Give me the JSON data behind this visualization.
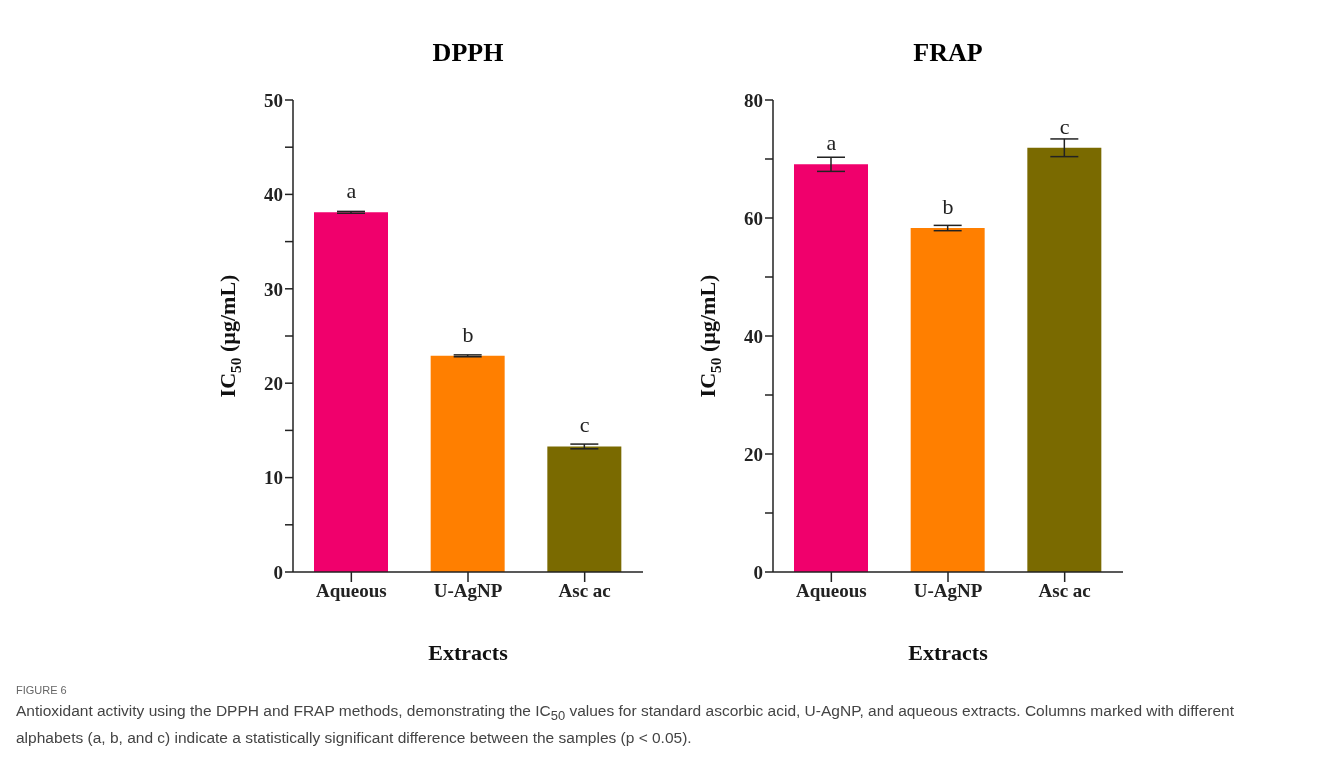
{
  "chart_data": [
    {
      "type": "bar",
      "title": "DPPH",
      "xlabel": "Extracts",
      "ylabel": "IC$_{50}$ (µg/mL)",
      "categories": [
        "Aqueous",
        "U-AgNP",
        "Asc ac"
      ],
      "values": [
        38.1,
        22.9,
        13.3
      ],
      "errors": [
        0.1,
        0.1,
        0.25
      ],
      "colors": [
        "#f0006c",
        "#ff7f00",
        "#7a6a00"
      ],
      "ylim": [
        0,
        50
      ],
      "yticks": [
        0,
        {
          "value": 5,
          "label": null
        },
        10,
        {
          "value": 15,
          "label": null
        },
        20,
        {
          "value": 25,
          "label": null
        },
        30,
        {
          "value": 35,
          "label": null
        },
        40,
        {
          "value": 45,
          "label": null
        },
        50
      ],
      "annotations": [
        {
          "text": "a",
          "x": "Aqueous",
          "y": 38.1
        },
        {
          "text": "b",
          "x": "U-AgNP",
          "y": 22.9
        },
        {
          "text": "c",
          "x": "Asc ac",
          "y": 13.3
        },
        "FIGURE 6",
        "Antioxidant activity using the DPPH and FRAP methods, demonstrating the IC$_{50}$ values for standard ascorbic acid, U-AgNP, and aqueous extracts. Columns marked with different alphabets (a, b, and c) indicate a statistically significant difference between the samples (p < 0.05)."
      ]
    },
    {
      "type": "bar",
      "title": "FRAP",
      "xlabel": "Extracts",
      "ylabel": "IC$_{50}$ (µg/mL)",
      "categories": [
        "Aqueous",
        "U-AgNP",
        "Asc ac"
      ],
      "values": [
        69.1,
        58.3,
        71.9
      ],
      "errors": [
        1.2,
        0.45,
        1.5
      ],
      "colors": [
        "#f0006c",
        "#ff7f00",
        "#7a6a00"
      ],
      "ylim": [
        0,
        80
      ],
      "yticks": [
        0,
        {
          "value": 10,
          "label": null
        },
        20,
        {
          "value": 30,
          "label": null
        },
        40,
        {
          "value": 50,
          "label": null
        },
        60,
        {
          "value": 70,
          "label": null
        },
        80
      ],
      "annotations": [
        {
          "text": "a",
          "x": "Aqueous",
          "y": 69.1
        },
        {
          "text": "b",
          "x": "U-AgNP",
          "y": 58.3
        },
        {
          "text": "c",
          "x": "Asc ac",
          "y": 71.9
        }
      ]
    }
  ]
}
